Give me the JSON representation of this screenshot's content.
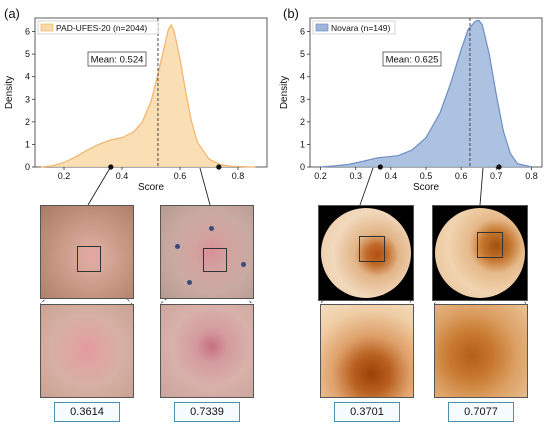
{
  "panels": {
    "a": {
      "label": "(a)"
    },
    "b": {
      "label": "(b)"
    }
  },
  "chart_data": [
    {
      "type": "area",
      "legend": "PAD-UFES-20 (n=2044)",
      "color": "#f4b36b",
      "fill": "#f9d9a8",
      "xlabel": "Score",
      "ylabel": "Density",
      "xticks": [
        0.2,
        0.4,
        0.6,
        0.8
      ],
      "yticks": [
        0,
        1,
        2,
        3,
        4,
        5,
        6
      ],
      "xlim": [
        0.1,
        0.9
      ],
      "ylim": [
        0,
        6.6
      ],
      "mean_value": 0.524,
      "mean_label": "Mean: 0.524",
      "x": [
        0.12,
        0.16,
        0.2,
        0.24,
        0.28,
        0.32,
        0.36,
        0.4,
        0.44,
        0.47,
        0.5,
        0.52,
        0.54,
        0.56,
        0.57,
        0.58,
        0.6,
        0.62,
        0.64,
        0.66,
        0.7,
        0.74,
        0.78,
        0.82,
        0.86
      ],
      "y": [
        0.0,
        0.05,
        0.2,
        0.45,
        0.75,
        1.0,
        1.2,
        1.3,
        1.55,
        2.0,
        2.9,
        3.9,
        5.0,
        6.1,
        6.3,
        6.0,
        4.8,
        3.3,
        2.0,
        1.1,
        0.35,
        0.1,
        0.03,
        0.01,
        0.0
      ],
      "samples": [
        {
          "score": 0.3614,
          "score_label": "0.3614"
        },
        {
          "score": 0.7339,
          "score_label": "0.7339"
        }
      ]
    },
    {
      "type": "area",
      "legend": "Novara (n=149)",
      "color": "#6d8fc4",
      "fill": "#9fb6dc",
      "xlabel": "Score",
      "ylabel": "Density",
      "xticks": [
        0.2,
        0.3,
        0.4,
        0.5,
        0.6,
        0.7,
        0.8
      ],
      "yticks": [
        0,
        1,
        2,
        3,
        4,
        5,
        6
      ],
      "xlim": [
        0.17,
        0.83
      ],
      "ylim": [
        0,
        6.6
      ],
      "mean_value": 0.625,
      "mean_label": "Mean: 0.625",
      "x": [
        0.2,
        0.24,
        0.28,
        0.32,
        0.36,
        0.39,
        0.42,
        0.46,
        0.5,
        0.54,
        0.57,
        0.6,
        0.62,
        0.64,
        0.65,
        0.66,
        0.68,
        0.7,
        0.72,
        0.74,
        0.76,
        0.8
      ],
      "y": [
        0.0,
        0.05,
        0.12,
        0.25,
        0.4,
        0.45,
        0.5,
        0.75,
        1.3,
        2.4,
        3.7,
        5.2,
        6.1,
        6.45,
        6.5,
        6.3,
        5.0,
        3.2,
        1.6,
        0.6,
        0.15,
        0.0
      ],
      "samples": [
        {
          "score": 0.3701,
          "score_label": "0.3701"
        },
        {
          "score": 0.7077,
          "score_label": "0.7077"
        }
      ]
    }
  ]
}
